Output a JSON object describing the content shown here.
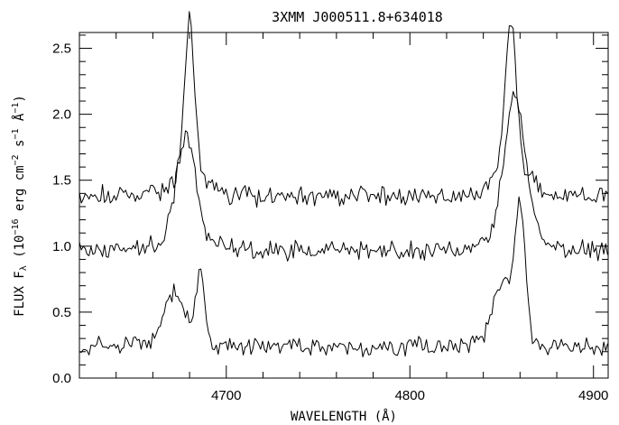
{
  "chart_data": {
    "type": "line",
    "title": "3XMM  J000511.8+634018",
    "xlabel": "WAVELENGTH (Å)",
    "ylabel": {
      "prefix": "FLUX F",
      "subscript": "λ",
      "p1": " (10",
      "e1": "−16",
      "p2": " erg cm",
      "e2": "−2",
      "p3": " s",
      "e3": "−1",
      "p4": " Å",
      "e4": "−1",
      "p5": ")"
    },
    "xlim": [
      4620,
      4908
    ],
    "ylim": [
      0.0,
      2.62
    ],
    "xticks": [
      4700,
      4800,
      4900
    ],
    "xtick_labels": [
      "4700",
      "4800",
      "4900"
    ],
    "yticks": [
      0.0,
      0.5,
      1.0,
      1.5,
      2.0,
      2.5
    ],
    "ytick_labels": [
      "0.0",
      "0.5",
      "1.0",
      "1.5",
      "2.0",
      "2.5"
    ],
    "grid": false,
    "series": [
      {
        "base": 1.38,
        "noise": 0.055,
        "lines": [
          {
            "center": 4680,
            "amp": 1.16,
            "width": 2.6,
            "wing_amp": 0.2,
            "wing_width": 9
          },
          {
            "center": 4855,
            "amp": 1.08,
            "width": 3.0,
            "wing_amp": 0.25,
            "wing_width": 9
          }
        ]
      },
      {
        "base": 0.97,
        "noise": 0.05,
        "lines": [
          {
            "center": 4678,
            "amp": 0.72,
            "width": 5.0,
            "wing_amp": 0.15,
            "wing_width": 11
          },
          {
            "center": 4857,
            "amp": 0.96,
            "width": 5.5,
            "wing_amp": 0.2,
            "wing_width": 11
          }
        ]
      },
      {
        "base": 0.24,
        "noise": 0.05,
        "lines": [
          {
            "center": 4672,
            "amp": 0.42,
            "width": 6.0,
            "wing_amp": 0.0,
            "wing_width": 10
          },
          {
            "center": 4686,
            "amp": 0.54,
            "width": 2.3,
            "wing_amp": 0.0,
            "wing_width": 10
          },
          {
            "center": 4850,
            "amp": 0.5,
            "width": 5.0,
            "wing_amp": 0.0,
            "wing_width": 10
          },
          {
            "center": 4860,
            "amp": 1.0,
            "width": 3.0,
            "wing_amp": 0.0,
            "wing_width": 10
          }
        ]
      }
    ]
  }
}
